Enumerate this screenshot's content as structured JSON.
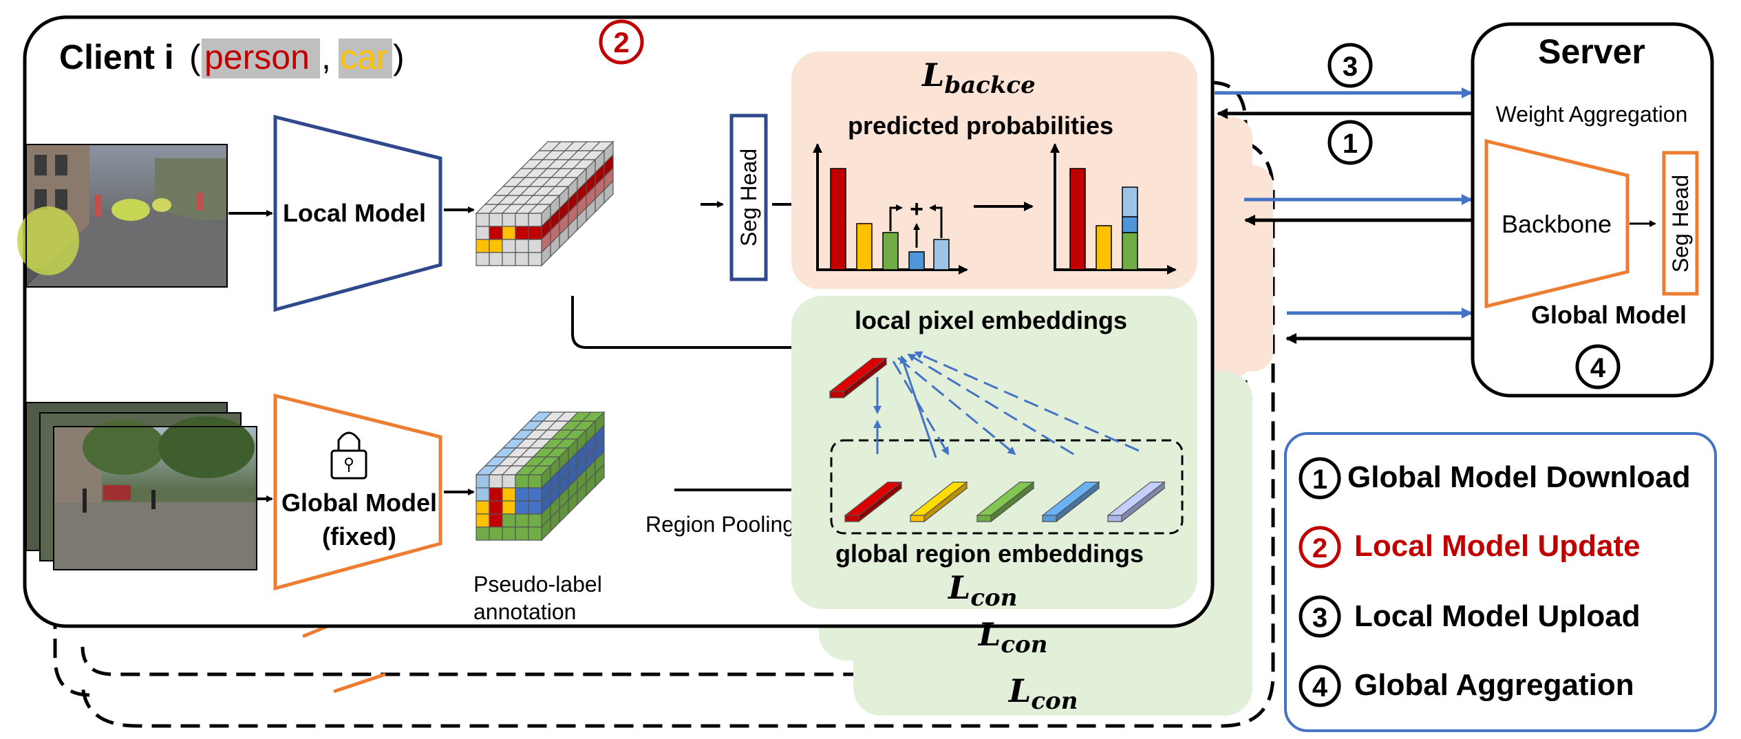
{
  "client": {
    "title": "Client i",
    "paren_open": "(",
    "class1": "person",
    "comma": ",",
    "class2": "car",
    "paren_close": ")",
    "step_badge": "2"
  },
  "local_model": {
    "label": "Local Model"
  },
  "global_model_client": {
    "label_line1": "Global Model",
    "label_line2": "(fixed)"
  },
  "seg_head": {
    "label": "Seg Head"
  },
  "backce": {
    "loss_main": "L",
    "loss_sub": "backce",
    "caption": "predicted probabilities",
    "plus": "+"
  },
  "contrast": {
    "local_label": "local pixel embeddings",
    "global_label": "global region embeddings",
    "loss_main": "L",
    "loss_sub": "con"
  },
  "stack_losses": [
    {
      "main": "L",
      "sub": "con"
    },
    {
      "main": "L",
      "sub": "con"
    }
  ],
  "region_pooling": "Region Pooling",
  "pseudo_label": {
    "line1": "Pseudo-label",
    "line2": "annotation"
  },
  "arrows": {
    "upload_step": "3",
    "download_step": "1"
  },
  "server": {
    "title": "Server",
    "subtitle": "Weight Aggregation",
    "backbone": "Backbone",
    "seg_head": "Seg Head",
    "global_model": "Global Model",
    "step": "4"
  },
  "legend": {
    "items": [
      {
        "num": "1",
        "text": "Global Model Download",
        "color": "#000000"
      },
      {
        "num": "2",
        "text": "Local Model Update",
        "color": "#c00000"
      },
      {
        "num": "3",
        "text": "Local Model Upload",
        "color": "#000000"
      },
      {
        "num": "4",
        "text": "Global Aggregation",
        "color": "#000000"
      }
    ]
  },
  "colors": {
    "blue_model": "#2f4a8c",
    "orange_model": "#ed7d31",
    "red": "#c00000",
    "yellow": "#ffc000",
    "green": "#70ad47",
    "blue": "#4472c4",
    "light_blue": "#9dc3e6",
    "light_purple": "#aab4e6",
    "peach_panel": "#fbe3d6",
    "green_panel": "#e2efd9",
    "arrow_blue": "#4472c4"
  }
}
